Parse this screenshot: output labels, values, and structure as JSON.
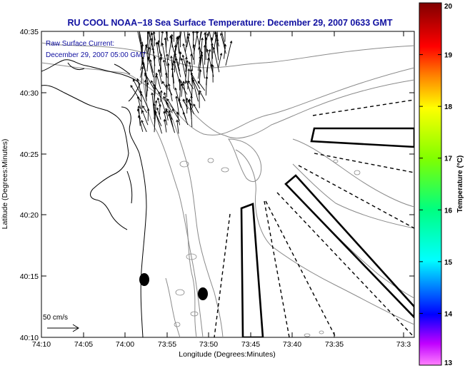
{
  "title": "RU COOL  NOAA−18  Sea Surface Temperature:  December 29, 2007 0633 GMT",
  "current_label": {
    "line1": "Raw Surface Current:",
    "line2": "December 29, 2007 05:00 GMT"
  },
  "axes": {
    "xlabel": "Longitude (Degrees:Minutes)",
    "ylabel": "Latitude (Degrees:Minutes)",
    "x_ticks": [
      "74:10",
      "74:05",
      "74:00",
      "73:55",
      "73:50",
      "73:45",
      "73:40",
      "73:35",
      "73:3"
    ],
    "y_ticks": [
      "40:35",
      "40:30",
      "40:25",
      "40:20",
      "40:15",
      "40:10"
    ]
  },
  "scale_arrow": {
    "label": "50 cm/s"
  },
  "colorbar": {
    "label": "Temperature (°C)",
    "ticks": [
      "20",
      "19",
      "18",
      "17",
      "16",
      "15",
      "14",
      "13"
    ],
    "min": 13,
    "max": 20,
    "colors": [
      "#ff00ff",
      "#0000ff",
      "#00ffff",
      "#00ff00",
      "#ffff00",
      "#ff8000",
      "#ff0000",
      "#800000"
    ]
  },
  "colors": {
    "title": "#1010a0",
    "label": "#1010a0",
    "coast": "#000000",
    "bathymetry": "#808080",
    "vectors": "#000000"
  }
}
